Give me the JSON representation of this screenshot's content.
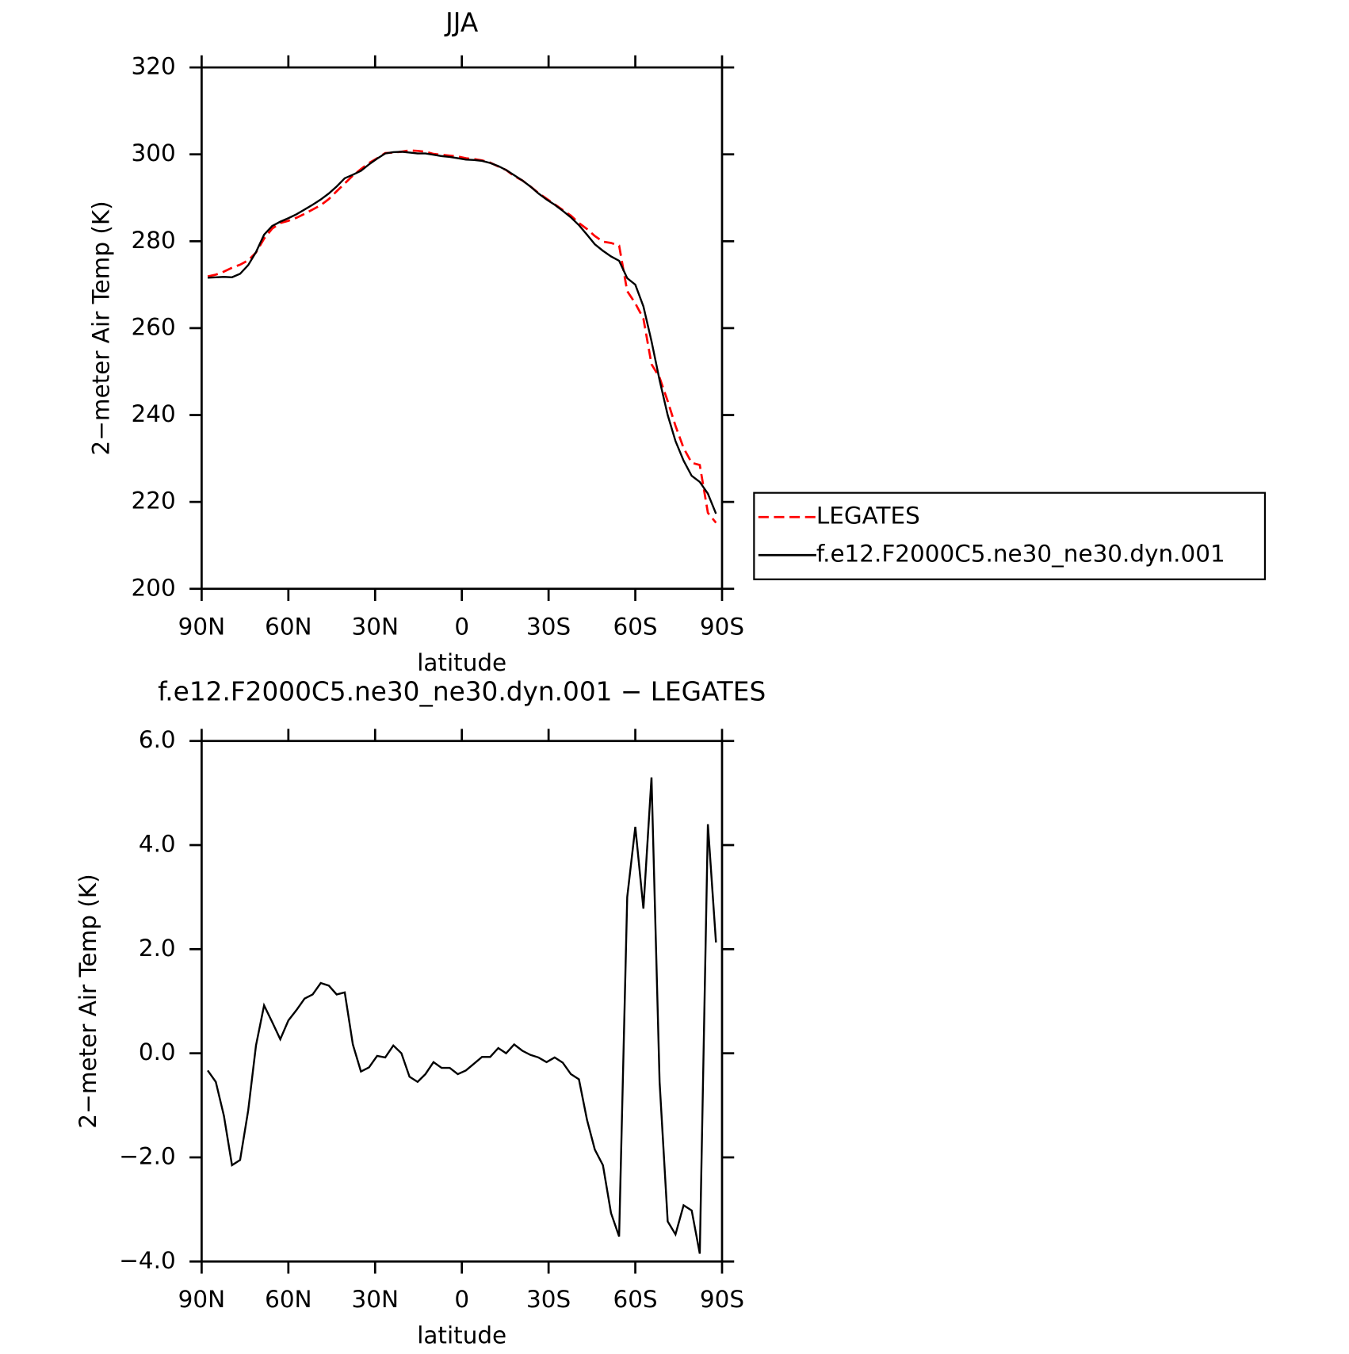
{
  "chart_data": [
    {
      "type": "line",
      "title": "JJA",
      "xlabel": "latitude",
      "ylabel": "2−meter Air Temp (K)",
      "x": [
        87.9,
        85.1,
        82.3,
        79.5,
        76.7,
        73.9,
        71.2,
        68.4,
        65.6,
        62.8,
        60.0,
        57.2,
        54.4,
        51.6,
        48.8,
        46.0,
        43.3,
        40.5,
        37.7,
        34.9,
        32.1,
        29.3,
        26.5,
        23.7,
        20.9,
        18.1,
        15.3,
        12.6,
        9.8,
        7.0,
        4.2,
        1.4,
        -1.4,
        -4.2,
        -7.0,
        -9.8,
        -12.6,
        -15.3,
        -18.1,
        -20.9,
        -23.7,
        -26.5,
        -29.3,
        -32.1,
        -34.9,
        -37.7,
        -40.5,
        -43.3,
        -46.0,
        -48.8,
        -51.6,
        -54.4,
        -57.2,
        -60.0,
        -62.8,
        -65.6,
        -68.4,
        -71.2,
        -73.9,
        -76.7,
        -79.5,
        -82.3,
        -85.1,
        -87.9
      ],
      "series": [
        {
          "name": "LEGATES",
          "color": "#ff0000",
          "dash": "dashed",
          "values": [
            271.9,
            272.3,
            273.0,
            273.9,
            274.6,
            275.6,
            277.4,
            280.6,
            282.9,
            284.2,
            284.7,
            285.4,
            286.3,
            287.3,
            288.3,
            289.7,
            291.5,
            293.3,
            295.1,
            296.6,
            298.0,
            299.1,
            300.3,
            300.4,
            300.6,
            300.9,
            300.8,
            300.6,
            300.1,
            299.9,
            299.7,
            299.5,
            299.1,
            298.9,
            298.6,
            298.1,
            297.2,
            296.4,
            295.0,
            294.0,
            292.6,
            291.1,
            289.8,
            288.5,
            287.2,
            285.9,
            284.2,
            282.8,
            281.2,
            279.9,
            279.6,
            279.0,
            268.5,
            265.7,
            262.2,
            251.7,
            248.6,
            243.2,
            237.5,
            232.4,
            229.0,
            228.5,
            217.5,
            215.2
          ]
        },
        {
          "name": "f.e12.F2000C5.ne30_ne30.dyn.001",
          "color": "#000000",
          "dash": "solid",
          "values": [
            271.6,
            271.7,
            271.8,
            271.7,
            272.5,
            274.5,
            277.5,
            281.5,
            283.5,
            284.5,
            285.3,
            286.2,
            287.3,
            288.4,
            289.6,
            291.0,
            292.6,
            294.5,
            295.3,
            296.2,
            297.7,
            299.0,
            300.2,
            300.5,
            300.6,
            300.4,
            300.2,
            300.2,
            299.9,
            299.6,
            299.4,
            299.1,
            298.8,
            298.7,
            298.5,
            298.0,
            297.3,
            296.4,
            295.2,
            294.0,
            292.6,
            291.0,
            289.6,
            288.4,
            287.0,
            285.5,
            283.7,
            281.5,
            279.3,
            277.8,
            276.5,
            275.5,
            271.5,
            270.0,
            265.0,
            257.0,
            248.0,
            240.0,
            234.0,
            229.5,
            226.0,
            224.6,
            221.9,
            217.3
          ]
        }
      ],
      "xlim": [
        90,
        -90
      ],
      "xticks": [
        {
          "value": 90,
          "label": "90N"
        },
        {
          "value": 60,
          "label": "60N"
        },
        {
          "value": 30,
          "label": "30N"
        },
        0,
        {
          "value": -30,
          "label": "30S"
        },
        {
          "value": -60,
          "label": "60S"
        },
        {
          "value": -90,
          "label": "90S"
        }
      ],
      "ylim": [
        200,
        320
      ],
      "yticks": [
        200,
        220,
        240,
        260,
        280,
        300,
        320
      ],
      "legend": "right"
    },
    {
      "type": "line",
      "title": "f.e12.F2000C5.ne30_ne30.dyn.001 − LEGATES",
      "xlabel": "latitude",
      "ylabel": "2−meter Air Temp (K)",
      "x": [
        87.9,
        85.1,
        82.3,
        79.5,
        76.7,
        73.9,
        71.2,
        68.4,
        65.6,
        62.8,
        60.0,
        57.2,
        54.4,
        51.6,
        48.8,
        46.0,
        43.3,
        40.5,
        37.7,
        34.9,
        32.1,
        29.3,
        26.5,
        23.7,
        20.9,
        18.1,
        15.3,
        12.6,
        9.8,
        7.0,
        4.2,
        1.4,
        -1.4,
        -4.2,
        -7.0,
        -9.8,
        -12.6,
        -15.3,
        -18.1,
        -20.9,
        -23.7,
        -26.5,
        -29.3,
        -32.1,
        -34.9,
        -37.7,
        -40.5,
        -43.3,
        -46.0,
        -48.8,
        -51.6,
        -54.4,
        -57.2,
        -60.0,
        -62.8,
        -65.6,
        -68.4,
        -71.2,
        -73.9,
        -76.7,
        -79.5,
        -82.3,
        -85.1,
        -87.9
      ],
      "series": [
        {
          "color": "#000000",
          "dash": "solid",
          "values": [
            -0.33,
            -0.55,
            -1.2,
            -2.15,
            -2.05,
            -1.1,
            0.15,
            0.92,
            0.6,
            0.27,
            0.63,
            0.83,
            1.05,
            1.13,
            1.35,
            1.3,
            1.13,
            1.17,
            0.17,
            -0.35,
            -0.27,
            -0.05,
            -0.08,
            0.15,
            0.0,
            -0.45,
            -0.55,
            -0.4,
            -0.17,
            -0.28,
            -0.28,
            -0.4,
            -0.33,
            -0.2,
            -0.07,
            -0.07,
            0.1,
            0.0,
            0.17,
            0.05,
            -0.03,
            -0.08,
            -0.17,
            -0.08,
            -0.18,
            -0.4,
            -0.5,
            -1.28,
            -1.85,
            -2.15,
            -3.07,
            -3.52,
            3.0,
            4.35,
            2.78,
            5.3,
            -0.55,
            -3.23,
            -3.48,
            -2.92,
            -3.02,
            -3.85,
            4.4,
            2.13
          ]
        }
      ],
      "xlim": [
        90,
        -90
      ],
      "xticks": [
        {
          "value": 90,
          "label": "90N"
        },
        {
          "value": 60,
          "label": "60N"
        },
        {
          "value": 30,
          "label": "30N"
        },
        0,
        {
          "value": -30,
          "label": "30S"
        },
        {
          "value": -60,
          "label": "60S"
        },
        {
          "value": -90,
          "label": "90S"
        }
      ],
      "ylim": [
        -4,
        6
      ],
      "yticks": [
        {
          "value": -4,
          "label": "−4.0"
        },
        {
          "value": -2,
          "label": "−2.0"
        },
        {
          "value": 0,
          "label": "0.0"
        },
        {
          "value": 2,
          "label": "2.0"
        },
        {
          "value": 4,
          "label": "4.0"
        },
        {
          "value": 6,
          "label": "6.0"
        }
      ]
    }
  ]
}
